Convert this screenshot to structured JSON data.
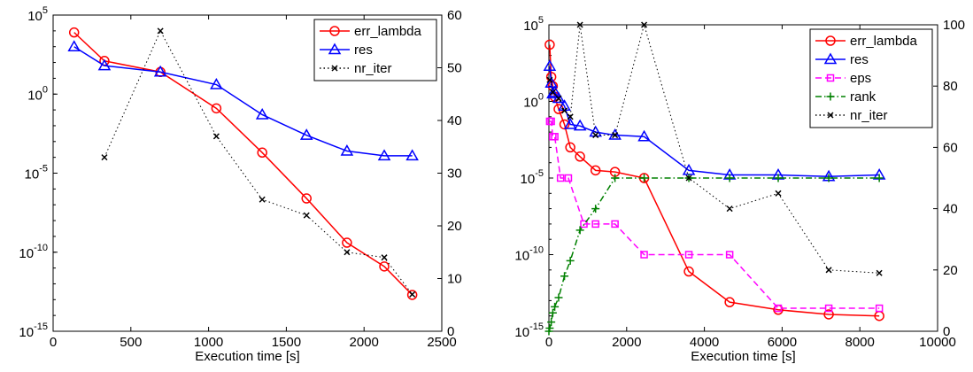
{
  "chart_data": [
    {
      "type": "line",
      "xlabel": "Execution time [s]",
      "xlim": [
        0,
        2500
      ],
      "x_ticks": [
        "0",
        "500",
        "1000",
        "1500",
        "2000",
        "2500"
      ],
      "y_left": {
        "scale": "log",
        "lim_exp": [
          -15,
          5
        ],
        "tick_exps": [
          "5",
          "0",
          "-5",
          "-10",
          "-15"
        ],
        "tick_base": "10"
      },
      "y_right": {
        "scale": "linear",
        "lim": [
          0,
          60
        ],
        "ticks": [
          "0",
          "10",
          "20",
          "30",
          "40",
          "50",
          "60"
        ]
      },
      "legend_position": "top-right",
      "series": [
        {
          "name": "err_lambda",
          "axis": "left",
          "color": "#ff0000",
          "marker": "circle",
          "line": "solid",
          "x": [
            135,
            330,
            690,
            1050,
            1345,
            1630,
            1890,
            2130,
            2310
          ],
          "log10_y": [
            3.9,
            2.1,
            1.4,
            -0.9,
            -3.7,
            -6.6,
            -9.4,
            -10.9,
            -12.7
          ]
        },
        {
          "name": "res",
          "axis": "left",
          "color": "#0000ff",
          "marker": "triangle",
          "line": "solid",
          "x": [
            135,
            330,
            690,
            1050,
            1345,
            1630,
            1890,
            2130,
            2310
          ],
          "log10_y": [
            3.0,
            1.8,
            1.4,
            0.6,
            -1.3,
            -2.6,
            -3.6,
            -3.9,
            -3.9
          ]
        },
        {
          "name": "nr_iter",
          "axis": "right",
          "color": "#000000",
          "marker": "x",
          "line": "dotted",
          "x": [
            330,
            690,
            1050,
            1345,
            1630,
            1890,
            2130,
            2310
          ],
          "y": [
            33,
            57,
            37,
            25,
            22,
            15,
            14,
            7
          ]
        }
      ]
    },
    {
      "type": "line",
      "xlabel": "Execution time [s]",
      "xlim": [
        0,
        10000
      ],
      "x_ticks": [
        "0",
        "2000",
        "4000",
        "6000",
        "8000",
        "10000"
      ],
      "y_left": {
        "scale": "log",
        "lim_exp": [
          -15,
          5
        ],
        "tick_exps": [
          "5",
          "0",
          "-5",
          "-10",
          "-15"
        ],
        "tick_base": "10"
      },
      "y_right": {
        "scale": "linear",
        "lim": [
          0,
          100
        ],
        "ticks": [
          "0",
          "20",
          "40",
          "60",
          "80",
          "100"
        ]
      },
      "legend_position": "top-right",
      "series": [
        {
          "name": "err_lambda",
          "axis": "left",
          "color": "#ff0000",
          "marker": "circle",
          "line": "solid",
          "x": [
            20,
            60,
            100,
            150,
            250,
            400,
            550,
            800,
            1200,
            1700,
            2450,
            3600,
            4650,
            5900,
            7200,
            8500
          ],
          "log10_y": [
            3.7,
            1.6,
            1.0,
            0.3,
            -0.5,
            -1.5,
            -3.0,
            -3.6,
            -4.5,
            -4.6,
            -5.0,
            -11.1,
            -13.1,
            -13.6,
            -13.9,
            -14.0
          ]
        },
        {
          "name": "res",
          "axis": "left",
          "color": "#0000ff",
          "marker": "triangle",
          "line": "solid",
          "x": [
            20,
            60,
            100,
            150,
            250,
            400,
            550,
            800,
            1200,
            1700,
            2450,
            3600,
            4650,
            5900,
            7200,
            8500
          ],
          "log10_y": [
            2.3,
            1.2,
            0.5,
            0.6,
            0.2,
            -0.3,
            -1.5,
            -1.6,
            -2.0,
            -2.2,
            -2.3,
            -4.5,
            -4.8,
            -4.8,
            -4.9,
            -4.8
          ]
        },
        {
          "name": "eps",
          "axis": "left",
          "color": "#ff00ff",
          "marker": "square",
          "line": "dashed",
          "x": [
            20,
            60,
            100,
            150,
            300,
            500,
            900,
            1200,
            1700,
            2450,
            3600,
            4650,
            5900,
            7200,
            8500
          ],
          "log10_y": [
            -1.3,
            -1.3,
            -2.3,
            -2.3,
            -5.0,
            -5.0,
            -8.0,
            -8.0,
            -8.0,
            -10.0,
            -10.0,
            -10.0,
            -13.5,
            -13.5,
            -13.5
          ]
        },
        {
          "name": "rank",
          "axis": "right",
          "color": "#008000",
          "marker": "plus",
          "line": "dashdot",
          "x": [
            0,
            20,
            60,
            100,
            150,
            250,
            400,
            550,
            800,
            1200,
            1700,
            2450,
            3600,
            4650,
            5900,
            7200,
            8500
          ],
          "y": [
            0,
            1,
            3,
            6,
            8,
            11,
            18,
            23,
            33,
            40,
            50,
            50,
            50,
            50,
            50,
            50,
            50
          ]
        },
        {
          "name": "nr_iter",
          "axis": "right",
          "color": "#000000",
          "marker": "x",
          "line": "dotted",
          "x": [
            20,
            100,
            250,
            400,
            550,
            800,
            1200,
            1700,
            2450,
            3600,
            4650,
            5900,
            7200,
            8500
          ],
          "y": [
            82,
            78,
            76,
            72,
            70,
            100,
            64,
            64,
            100,
            50,
            40,
            45,
            20,
            19
          ]
        }
      ]
    }
  ]
}
